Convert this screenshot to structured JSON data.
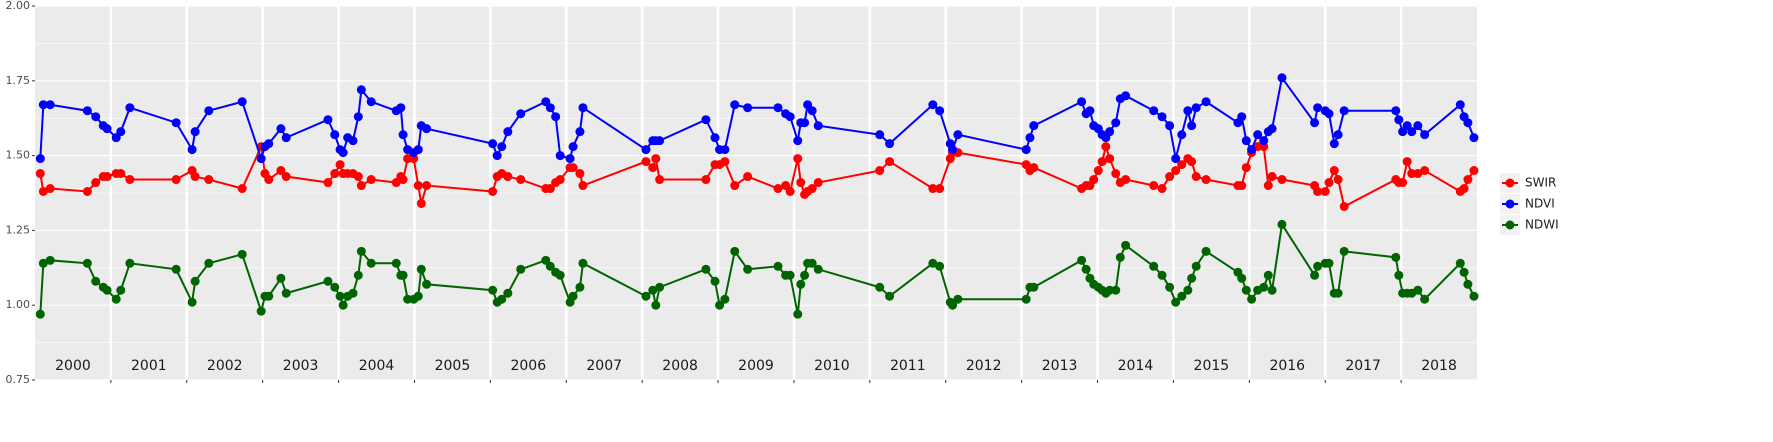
{
  "chart_data": {
    "type": "line",
    "x": [
      2000.07,
      2000.11,
      2000.2,
      2000.69,
      2000.8,
      2000.9,
      2000.95,
      2001.07,
      2001.13,
      2001.25,
      2001.86,
      2002.07,
      2002.11,
      2002.29,
      2002.73,
      2002.98,
      2003.03,
      2003.08,
      2003.24,
      2003.31,
      2003.86,
      2003.95,
      2004.02,
      2004.06,
      2004.12,
      2004.19,
      2004.26,
      2004.3,
      2004.43,
      2004.76,
      2004.82,
      2004.85,
      2004.91,
      2004.99,
      2005.05,
      2005.09,
      2005.16,
      2006.03,
      2006.09,
      2006.15,
      2006.23,
      2006.4,
      2006.73,
      2006.79,
      2006.86,
      2006.92,
      2007.05,
      2007.09,
      2007.18,
      2007.22,
      2008.05,
      2008.14,
      2008.18,
      2008.23,
      2008.84,
      2008.96,
      2009.02,
      2009.09,
      2009.22,
      2009.39,
      2009.79,
      2009.89,
      2009.95,
      2010.05,
      2010.09,
      2010.14,
      2010.18,
      2010.24,
      2010.32,
      2011.13,
      2011.26,
      2011.83,
      2011.92,
      2012.06,
      2012.09,
      2012.16,
      2013.06,
      2013.11,
      2013.16,
      2013.79,
      2013.85,
      2013.9,
      2013.95,
      2014.01,
      2014.06,
      2014.11,
      2014.16,
      2014.24,
      2014.3,
      2014.37,
      2014.74,
      2014.85,
      2014.95,
      2015.03,
      2015.11,
      2015.19,
      2015.24,
      2015.3,
      2015.43,
      2015.85,
      2015.9,
      2015.96,
      2016.03,
      2016.11,
      2016.19,
      2016.25,
      2016.3,
      2016.43,
      2016.86,
      2016.9,
      2017.0,
      2017.05,
      2017.12,
      2017.17,
      2017.25,
      2017.93,
      2017.97,
      2018.02,
      2018.08,
      2018.14,
      2018.22,
      2018.31,
      2018.78,
      2018.83,
      2018.88,
      2018.96
    ],
    "series": [
      {
        "name": "SWIR",
        "color": "#ff0000",
        "values": [
          1.44,
          1.38,
          1.39,
          1.38,
          1.41,
          1.43,
          1.43,
          1.44,
          1.44,
          1.42,
          1.42,
          1.45,
          1.43,
          1.42,
          1.39,
          1.53,
          1.44,
          1.42,
          1.45,
          1.43,
          1.41,
          1.44,
          1.47,
          1.44,
          1.44,
          1.44,
          1.43,
          1.4,
          1.42,
          1.41,
          1.43,
          1.42,
          1.49,
          1.49,
          1.4,
          1.34,
          1.4,
          1.38,
          1.43,
          1.44,
          1.43,
          1.42,
          1.39,
          1.39,
          1.41,
          1.42,
          1.46,
          1.46,
          1.44,
          1.4,
          1.48,
          1.46,
          1.49,
          1.42,
          1.42,
          1.47,
          1.47,
          1.48,
          1.4,
          1.43,
          1.39,
          1.4,
          1.38,
          1.49,
          1.41,
          1.37,
          1.38,
          1.39,
          1.41,
          1.45,
          1.48,
          1.39,
          1.39,
          1.49,
          1.51,
          1.51,
          1.47,
          1.45,
          1.46,
          1.39,
          1.4,
          1.4,
          1.42,
          1.45,
          1.48,
          1.53,
          1.49,
          1.44,
          1.41,
          1.42,
          1.4,
          1.39,
          1.43,
          1.45,
          1.47,
          1.49,
          1.48,
          1.43,
          1.42,
          1.4,
          1.4,
          1.46,
          1.51,
          1.53,
          1.53,
          1.4,
          1.43,
          1.42,
          1.4,
          1.38,
          1.38,
          1.41,
          1.45,
          1.42,
          1.33,
          1.42,
          1.41,
          1.41,
          1.48,
          1.44,
          1.44,
          1.45,
          1.38,
          1.39,
          1.42,
          1.45
        ]
      },
      {
        "name": "NDVI",
        "color": "#0000ff",
        "values": [
          1.49,
          1.67,
          1.67,
          1.65,
          1.63,
          1.6,
          1.59,
          1.56,
          1.58,
          1.66,
          1.61,
          1.52,
          1.58,
          1.65,
          1.68,
          1.49,
          1.53,
          1.54,
          1.59,
          1.56,
          1.62,
          1.57,
          1.52,
          1.51,
          1.56,
          1.55,
          1.63,
          1.72,
          1.68,
          1.65,
          1.66,
          1.57,
          1.52,
          1.51,
          1.52,
          1.6,
          1.59,
          1.54,
          1.5,
          1.53,
          1.58,
          1.64,
          1.68,
          1.66,
          1.63,
          1.5,
          1.49,
          1.53,
          1.58,
          1.66,
          1.52,
          1.55,
          1.55,
          1.55,
          1.62,
          1.56,
          1.52,
          1.52,
          1.67,
          1.66,
          1.66,
          1.64,
          1.63,
          1.55,
          1.61,
          1.61,
          1.67,
          1.65,
          1.6,
          1.57,
          1.54,
          1.67,
          1.65,
          1.54,
          1.52,
          1.57,
          1.52,
          1.56,
          1.6,
          1.68,
          1.64,
          1.65,
          1.6,
          1.59,
          1.57,
          1.56,
          1.58,
          1.61,
          1.69,
          1.7,
          1.65,
          1.63,
          1.6,
          1.49,
          1.57,
          1.65,
          1.6,
          1.66,
          1.68,
          1.61,
          1.63,
          1.55,
          1.52,
          1.57,
          1.55,
          1.58,
          1.59,
          1.76,
          1.61,
          1.66,
          1.65,
          1.64,
          1.54,
          1.57,
          1.65,
          1.65,
          1.62,
          1.58,
          1.6,
          1.58,
          1.6,
          1.57,
          1.67,
          1.63,
          1.61,
          1.56
        ]
      },
      {
        "name": "NDWI",
        "color": "#006400",
        "values": [
          0.97,
          1.14,
          1.15,
          1.14,
          1.08,
          1.06,
          1.05,
          1.02,
          1.05,
          1.14,
          1.12,
          1.01,
          1.08,
          1.14,
          1.17,
          0.98,
          1.03,
          1.03,
          1.09,
          1.04,
          1.08,
          1.06,
          1.03,
          1.0,
          1.03,
          1.04,
          1.1,
          1.18,
          1.14,
          1.14,
          1.1,
          1.1,
          1.02,
          1.02,
          1.03,
          1.12,
          1.07,
          1.05,
          1.01,
          1.02,
          1.04,
          1.12,
          1.15,
          1.13,
          1.11,
          1.1,
          1.01,
          1.03,
          1.06,
          1.14,
          1.03,
          1.05,
          1.0,
          1.06,
          1.12,
          1.08,
          1.0,
          1.02,
          1.18,
          1.12,
          1.13,
          1.1,
          1.1,
          0.97,
          1.07,
          1.1,
          1.14,
          1.14,
          1.12,
          1.06,
          1.03,
          1.14,
          1.13,
          1.01,
          1.0,
          1.02,
          1.02,
          1.06,
          1.06,
          1.15,
          1.12,
          1.09,
          1.07,
          1.06,
          1.05,
          1.04,
          1.05,
          1.05,
          1.16,
          1.2,
          1.13,
          1.1,
          1.06,
          1.01,
          1.03,
          1.05,
          1.09,
          1.13,
          1.18,
          1.11,
          1.09,
          1.05,
          1.02,
          1.05,
          1.06,
          1.1,
          1.05,
          1.27,
          1.1,
          1.13,
          1.14,
          1.14,
          1.04,
          1.04,
          1.18,
          1.16,
          1.1,
          1.04,
          1.04,
          1.04,
          1.05,
          1.02,
          1.14,
          1.11,
          1.07,
          1.03
        ]
      }
    ],
    "year_labels": [
      "2000",
      "2001",
      "2002",
      "2003",
      "2004",
      "2005",
      "2006",
      "2007",
      "2008",
      "2009",
      "2010",
      "2011",
      "2012",
      "2013",
      "2014",
      "2015",
      "2016",
      "2017",
      "2018"
    ],
    "xlim": [
      2000,
      2019
    ],
    "xticks": [
      2001,
      2002,
      2003,
      2004,
      2005,
      2006,
      2007,
      2008,
      2009,
      2010,
      2011,
      2012,
      2013,
      2014,
      2015,
      2016,
      2017,
      2018
    ],
    "ylim": [
      0.75,
      2.0
    ],
    "yticks": [
      {
        "value": 0.75,
        "label": "0.75"
      },
      {
        "value": 1.0,
        "label": "1.00"
      },
      {
        "value": 1.25,
        "label": "1.25"
      },
      {
        "value": 1.5,
        "label": "1.50"
      },
      {
        "value": 1.75,
        "label": "1.75"
      },
      {
        "value": 2.0,
        "label": "2.00"
      }
    ],
    "grid": true,
    "legend": "right"
  }
}
